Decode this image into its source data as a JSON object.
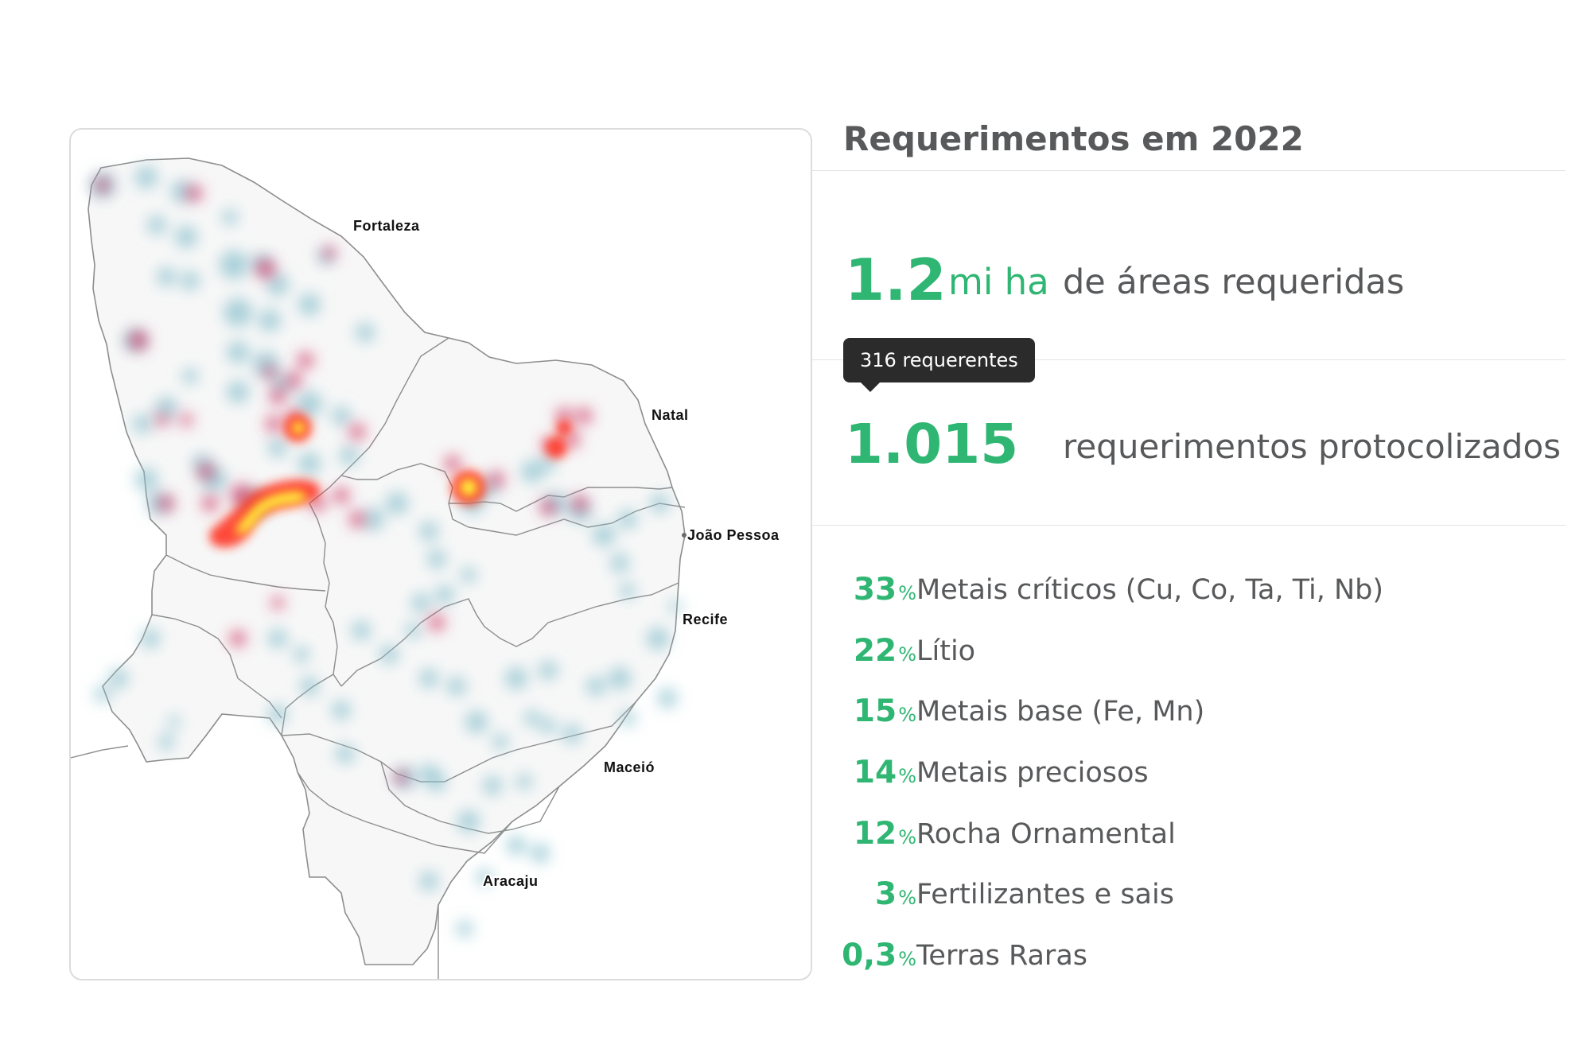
{
  "map": {
    "cities": [
      {
        "name": "Fortaleza"
      },
      {
        "name": "Natal"
      },
      {
        "name": "João Pessoa"
      },
      {
        "name": "Recife"
      },
      {
        "name": "Maceió"
      },
      {
        "name": "Aracaju"
      }
    ],
    "heat_colors": {
      "low": "#8fc3cf",
      "mid": "#d0406a",
      "high": "#ff2a1a",
      "peak": "#fff23a"
    }
  },
  "panel": {
    "title": "Requerimentos em 2022",
    "area": {
      "number": "1.2",
      "unit": "mi ha",
      "text": "de áreas requeridas"
    },
    "tooltip": "316 requerentes",
    "requests": {
      "number": "1.015",
      "text": "requerimentos protocolizados"
    },
    "breakdown": [
      {
        "value": "33",
        "symbol": "%",
        "label": "Metais críticos (Cu, Co, Ta, Ti, Nb)"
      },
      {
        "value": "22",
        "symbol": "%",
        "label": "Lítio"
      },
      {
        "value": "15",
        "symbol": "%",
        "label": "Metais base (Fe, Mn)"
      },
      {
        "value": "14",
        "symbol": "%",
        "label": "Metais preciosos"
      },
      {
        "value": "12",
        "symbol": "%",
        "label": "Rocha Ornamental"
      },
      {
        "value": "3",
        "symbol": "%",
        "label": "Fertilizantes e sais"
      },
      {
        "value": "0,3",
        "symbol": "%",
        "label": "Terras Raras"
      }
    ],
    "accent_color": "#2fb673"
  }
}
